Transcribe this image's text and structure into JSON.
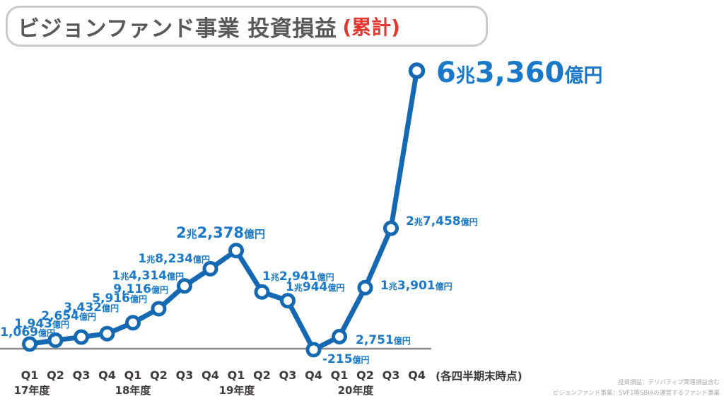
{
  "title": {
    "main": "ビジョンファンド事業 投資損益",
    "suffix": "(累計)"
  },
  "chart_data": {
    "type": "line",
    "title": "ビジョンファンド事業 投資損益 (累計)",
    "unit": "億円",
    "categories": [
      "Q1",
      "Q2",
      "Q3",
      "Q4",
      "Q1",
      "Q2",
      "Q3",
      "Q4",
      "Q1",
      "Q2",
      "Q3",
      "Q4",
      "Q1",
      "Q2",
      "Q3",
      "Q4"
    ],
    "year_labels": [
      "17年度",
      "18年度",
      "19年度",
      "20年度"
    ],
    "values": [
      1069,
      1943,
      2654,
      3432,
      5916,
      9116,
      14314,
      18234,
      22378,
      12941,
      10944,
      -215,
      2751,
      13901,
      27458,
      63360
    ],
    "labels": [
      "1,069億円",
      "1,943億円",
      "2,654億円",
      "3,432億円",
      "5,916億円",
      "9,116億円",
      "1兆4,314億円",
      "1兆8,234億円",
      "2兆2,378億円",
      "1兆2,941億円",
      "1兆944億円",
      "-215億円",
      "2,751億円",
      "1兆3,901億円",
      "2兆7,458億円",
      "6兆3,360億円"
    ],
    "highlight_label": "6兆3,360億円",
    "note": "(各四半期末時点)",
    "ylim": [
      -215,
      63360
    ],
    "grid": false,
    "legend": "none"
  },
  "footnotes": [
    "投資損益：デリバティブ関連損益含む",
    "ビジョンファンド事業：SVF1等SBIAの運営するファンド事業"
  ],
  "colors": {
    "line": "#1569b3",
    "label": "#1a78c8",
    "title_text": "#595757",
    "accent_red": "#e5372e",
    "axis_line": "#8a8a8a",
    "axis_text": "#3e3a39",
    "footnote": "#a9a9a9"
  }
}
